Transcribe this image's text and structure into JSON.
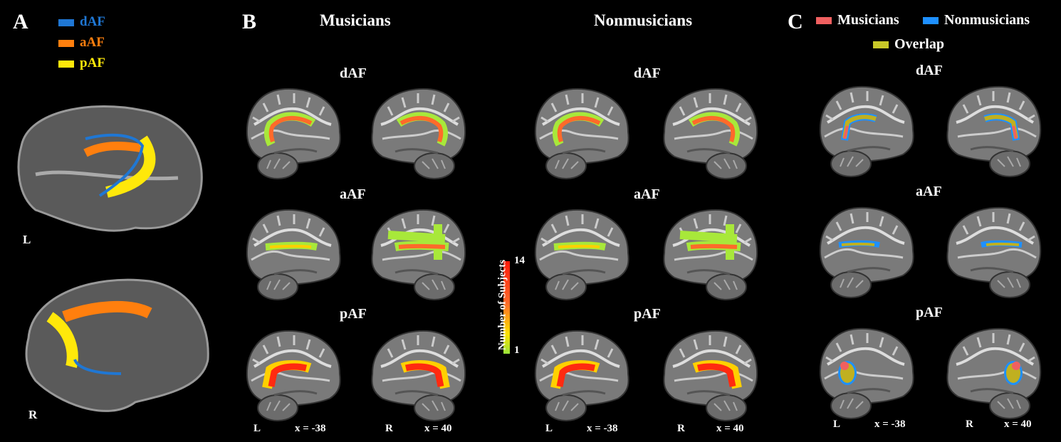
{
  "panel_a": {
    "letter": "A",
    "legend": [
      {
        "label": "dAF",
        "color": "#1f77d4"
      },
      {
        "label": "aAF",
        "color": "#ff7f0e"
      },
      {
        "label": "pAF",
        "color": "#ffe80a"
      }
    ],
    "hemi_labels": [
      "L",
      "R"
    ]
  },
  "panel_b": {
    "letter": "B",
    "groups": [
      "Musicians",
      "Nonmusicians"
    ],
    "tracts": [
      "dAF",
      "aAF",
      "pAF"
    ],
    "footer": {
      "left": "L",
      "left_coord": "x = -38",
      "right": "R",
      "right_coord": "x = 40"
    },
    "colorbar": {
      "label": "Number of Subjects",
      "max": "14",
      "min": "1",
      "colormap": [
        "#99e43a",
        "#ffe000",
        "#ff6a2a",
        "#ff1a0a"
      ]
    }
  },
  "panel_c": {
    "letter": "C",
    "legend": [
      {
        "label": "Musicians",
        "color": "#f06060"
      },
      {
        "label": "Nonmusicians",
        "color": "#1e90ff"
      },
      {
        "label": "Overlap",
        "color": "#c8c828"
      }
    ],
    "tracts": [
      "dAF",
      "aAF",
      "pAF"
    ],
    "footer": {
      "left": "L",
      "left_coord": "x = -38",
      "right": "R",
      "right_coord": "x = 40"
    }
  }
}
